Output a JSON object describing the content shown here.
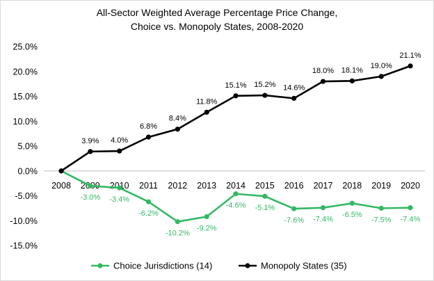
{
  "chart_data": {
    "type": "line",
    "title": "All-Sector Weighted Average Percentage Price Change,",
    "subtitle": "Choice vs. Monopoly  States, 2008-2020",
    "xlabel": "",
    "ylabel": "",
    "categories": [
      "2008",
      "2009",
      "2010",
      "2011",
      "2012",
      "2013",
      "2014",
      "2015",
      "2016",
      "2017",
      "2018",
      "2019",
      "2020"
    ],
    "ylim": [
      -15,
      25
    ],
    "yticks": [
      25,
      20,
      15,
      10,
      5,
      0,
      -5,
      -10,
      -15
    ],
    "ytick_labels": [
      "25.0%",
      "20.0%",
      "15.0%",
      "10.0%",
      "5.0%",
      "0.0%",
      "-5.0%",
      "-10.0%",
      "-15.0%"
    ],
    "grid": false,
    "legend_position": "bottom",
    "series": [
      {
        "name": "Choice Jurisdictions (14)",
        "color": "#33b864",
        "values": [
          0,
          -3.0,
          -3.4,
          -6.2,
          -10.2,
          -9.2,
          -4.6,
          -5.1,
          -7.6,
          -7.4,
          -6.5,
          -7.5,
          -7.4
        ],
        "labels": [
          "",
          "-3.0%",
          "-3.4%",
          "-6.2%",
          "-10.2%",
          "-9.2%",
          "-4.6%",
          "-5.1%",
          "-7.6%",
          "-7.4%",
          "-6.5%",
          "-7.5%",
          "-7.4%"
        ]
      },
      {
        "name": "Monopoly States (35)",
        "color": "#000000",
        "values": [
          0,
          3.9,
          4.0,
          6.8,
          8.4,
          11.8,
          15.1,
          15.2,
          14.6,
          18.0,
          18.1,
          19.0,
          21.1
        ],
        "labels": [
          "",
          "3.9%",
          "4.0%",
          "6.8%",
          "8.4%",
          "11.8%",
          "15.1%",
          "15.2%",
          "14.6%",
          "18.0%",
          "18.1%",
          "19.0%",
          "21.1%"
        ]
      }
    ]
  }
}
